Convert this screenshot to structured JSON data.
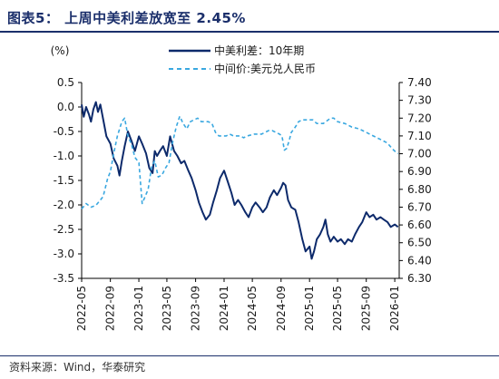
{
  "header": {
    "title": "图表5： 上周中美利差放宽至 2.45%"
  },
  "footer": {
    "source": "资料来源：Wind，华泰研究"
  },
  "colors": {
    "spread": "#0d2a6b",
    "fx": "#3aa8e0",
    "title": "#1b2f6b"
  },
  "chart_data": {
    "type": "line",
    "unit_label": "(%)",
    "left_axis": {
      "ylim": [
        -3.5,
        0.5
      ],
      "ticks": [
        "0.5",
        "0.0",
        "-0.5",
        "-1.0",
        "-1.5",
        "-2.0",
        "-2.5",
        "-3.0",
        "-3.5"
      ]
    },
    "right_axis": {
      "ylim": [
        6.3,
        7.4
      ],
      "ticks": [
        "7.40",
        "7.30",
        "7.20",
        "7.10",
        "7.00",
        "6.90",
        "6.80",
        "6.70",
        "6.60",
        "6.50",
        "6.40",
        "6.30"
      ]
    },
    "x_ticks": [
      "2022-05",
      "2022-09",
      "2023-01",
      "2023-05",
      "2023-09",
      "2024-01",
      "2024-05",
      "2024-09",
      "2025-01",
      "2025-05",
      "2025-09",
      "2026-01"
    ],
    "legend_position": "top-right",
    "series": [
      {
        "name": "中美利差：10年期",
        "axis": "left",
        "style": "solid",
        "points": [
          [
            "2022-05-01",
            0.05
          ],
          [
            "2022-05-10",
            -0.2
          ],
          [
            "2022-05-20",
            0.0
          ],
          [
            "2022-06-01",
            -0.15
          ],
          [
            "2022-06-10",
            -0.3
          ],
          [
            "2022-06-20",
            -0.05
          ],
          [
            "2022-07-01",
            0.1
          ],
          [
            "2022-07-10",
            -0.1
          ],
          [
            "2022-07-20",
            0.05
          ],
          [
            "2022-08-01",
            -0.25
          ],
          [
            "2022-08-15",
            -0.6
          ],
          [
            "2022-09-01",
            -0.75
          ],
          [
            "2022-09-15",
            -1.05
          ],
          [
            "2022-10-01",
            -1.2
          ],
          [
            "2022-10-10",
            -1.4
          ],
          [
            "2022-10-20",
            -1.1
          ],
          [
            "2022-11-01",
            -0.8
          ],
          [
            "2022-11-15",
            -0.5
          ],
          [
            "2022-12-01",
            -0.7
          ],
          [
            "2022-12-15",
            -0.9
          ],
          [
            "2023-01-01",
            -0.6
          ],
          [
            "2023-01-15",
            -0.75
          ],
          [
            "2023-02-01",
            -0.95
          ],
          [
            "2023-02-15",
            -1.25
          ],
          [
            "2023-03-01",
            -1.35
          ],
          [
            "2023-03-10",
            -0.9
          ],
          [
            "2023-03-20",
            -1.0
          ],
          [
            "2023-04-01",
            -0.9
          ],
          [
            "2023-04-15",
            -0.8
          ],
          [
            "2023-05-01",
            -1.0
          ],
          [
            "2023-05-15",
            -0.6
          ],
          [
            "2023-06-01",
            -0.9
          ],
          [
            "2023-06-15",
            -1.0
          ],
          [
            "2023-07-01",
            -1.15
          ],
          [
            "2023-07-15",
            -1.1
          ],
          [
            "2023-08-01",
            -1.3
          ],
          [
            "2023-08-15",
            -1.45
          ],
          [
            "2023-09-01",
            -1.7
          ],
          [
            "2023-09-15",
            -1.95
          ],
          [
            "2023-10-01",
            -2.15
          ],
          [
            "2023-10-15",
            -2.3
          ],
          [
            "2023-11-01",
            -2.2
          ],
          [
            "2023-11-15",
            -1.95
          ],
          [
            "2023-12-01",
            -1.7
          ],
          [
            "2023-12-15",
            -1.45
          ],
          [
            "2024-01-01",
            -1.3
          ],
          [
            "2024-01-15",
            -1.5
          ],
          [
            "2024-02-01",
            -1.75
          ],
          [
            "2024-02-15",
            -2.0
          ],
          [
            "2024-03-01",
            -1.9
          ],
          [
            "2024-03-15",
            -2.0
          ],
          [
            "2024-04-01",
            -2.15
          ],
          [
            "2024-04-15",
            -2.25
          ],
          [
            "2024-05-01",
            -2.05
          ],
          [
            "2024-05-15",
            -1.95
          ],
          [
            "2024-06-01",
            -2.05
          ],
          [
            "2024-06-15",
            -2.15
          ],
          [
            "2024-07-01",
            -2.05
          ],
          [
            "2024-07-15",
            -1.85
          ],
          [
            "2024-08-01",
            -1.7
          ],
          [
            "2024-08-15",
            -1.8
          ],
          [
            "2024-09-01",
            -1.65
          ],
          [
            "2024-09-10",
            -1.55
          ],
          [
            "2024-09-20",
            -1.6
          ],
          [
            "2024-10-01",
            -1.9
          ],
          [
            "2024-10-15",
            -2.05
          ],
          [
            "2024-11-01",
            -2.1
          ],
          [
            "2024-11-15",
            -2.35
          ],
          [
            "2024-12-01",
            -2.7
          ],
          [
            "2024-12-15",
            -2.95
          ],
          [
            "2025-01-01",
            -2.85
          ],
          [
            "2025-01-10",
            -3.1
          ],
          [
            "2025-01-20",
            -2.95
          ],
          [
            "2025-02-01",
            -2.7
          ],
          [
            "2025-02-15",
            -2.6
          ],
          [
            "2025-03-01",
            -2.45
          ],
          [
            "2025-03-10",
            -2.3
          ],
          [
            "2025-03-20",
            -2.6
          ],
          [
            "2025-04-01",
            -2.75
          ],
          [
            "2025-04-15",
            -2.65
          ],
          [
            "2025-05-01",
            -2.75
          ],
          [
            "2025-05-15",
            -2.7
          ],
          [
            "2025-06-01",
            -2.8
          ],
          [
            "2025-06-15",
            -2.7
          ],
          [
            "2025-07-01",
            -2.75
          ],
          [
            "2025-07-15",
            -2.6
          ],
          [
            "2025-08-01",
            -2.45
          ],
          [
            "2025-08-15",
            -2.35
          ],
          [
            "2025-09-01",
            -2.15
          ],
          [
            "2025-09-15",
            -2.25
          ],
          [
            "2025-10-01",
            -2.2
          ],
          [
            "2025-10-15",
            -2.3
          ],
          [
            "2025-11-01",
            -2.25
          ],
          [
            "2025-11-15",
            -2.3
          ],
          [
            "2025-12-01",
            -2.35
          ],
          [
            "2025-12-15",
            -2.45
          ],
          [
            "2026-01-01",
            -2.4
          ],
          [
            "2026-01-15",
            -2.45
          ]
        ]
      },
      {
        "name": "中间价:美元兑人民币",
        "axis": "right",
        "style": "dashed",
        "points": [
          [
            "2022-05-01",
            6.69
          ],
          [
            "2022-05-20",
            6.72
          ],
          [
            "2022-06-10",
            6.7
          ],
          [
            "2022-07-01",
            6.71
          ],
          [
            "2022-07-20",
            6.74
          ],
          [
            "2022-08-01",
            6.76
          ],
          [
            "2022-08-20",
            6.86
          ],
          [
            "2022-09-01",
            6.9
          ],
          [
            "2022-09-15",
            7.0
          ],
          [
            "2022-10-01",
            7.1
          ],
          [
            "2022-10-20",
            7.18
          ],
          [
            "2022-11-01",
            7.2
          ],
          [
            "2022-11-15",
            7.1
          ],
          [
            "2022-12-01",
            7.05
          ],
          [
            "2022-12-15",
            6.98
          ],
          [
            "2023-01-01",
            6.95
          ],
          [
            "2023-01-15",
            6.72
          ],
          [
            "2023-01-25",
            6.75
          ],
          [
            "2023-02-10",
            6.8
          ],
          [
            "2023-02-25",
            6.93
          ],
          [
            "2023-03-10",
            6.96
          ],
          [
            "2023-03-25",
            6.87
          ],
          [
            "2023-04-10",
            6.88
          ],
          [
            "2023-04-25",
            6.92
          ],
          [
            "2023-05-10",
            6.95
          ],
          [
            "2023-05-25",
            7.06
          ],
          [
            "2023-06-10",
            7.15
          ],
          [
            "2023-06-25",
            7.21
          ],
          [
            "2023-07-10",
            7.17
          ],
          [
            "2023-07-25",
            7.14
          ],
          [
            "2023-08-10",
            7.18
          ],
          [
            "2023-08-25",
            7.19
          ],
          [
            "2023-09-10",
            7.2
          ],
          [
            "2023-09-25",
            7.18
          ],
          [
            "2023-10-10",
            7.18
          ],
          [
            "2023-10-25",
            7.18
          ],
          [
            "2023-11-10",
            7.17
          ],
          [
            "2023-11-25",
            7.12
          ],
          [
            "2023-12-10",
            7.1
          ],
          [
            "2023-12-25",
            7.1
          ],
          [
            "2024-01-10",
            7.1
          ],
          [
            "2024-01-25",
            7.11
          ],
          [
            "2024-02-10",
            7.1
          ],
          [
            "2024-02-25",
            7.1
          ],
          [
            "2024-03-10",
            7.1
          ],
          [
            "2024-03-25",
            7.09
          ],
          [
            "2024-04-10",
            7.1
          ],
          [
            "2024-05-10",
            7.11
          ],
          [
            "2024-06-10",
            7.11
          ],
          [
            "2024-07-10",
            7.13
          ],
          [
            "2024-07-25",
            7.13
          ],
          [
            "2024-08-10",
            7.12
          ],
          [
            "2024-08-25",
            7.11
          ],
          [
            "2024-09-05",
            7.1
          ],
          [
            "2024-09-15",
            7.02
          ],
          [
            "2024-09-25",
            7.03
          ],
          [
            "2024-10-05",
            7.07
          ],
          [
            "2024-10-15",
            7.12
          ],
          [
            "2024-11-01",
            7.15
          ],
          [
            "2024-11-15",
            7.18
          ],
          [
            "2024-12-01",
            7.19
          ],
          [
            "2024-12-15",
            7.19
          ],
          [
            "2025-01-01",
            7.19
          ],
          [
            "2025-01-15",
            7.19
          ],
          [
            "2025-02-01",
            7.17
          ],
          [
            "2025-03-01",
            7.17
          ],
          [
            "2025-04-01",
            7.2
          ],
          [
            "2025-04-15",
            7.2
          ],
          [
            "2025-05-01",
            7.18
          ],
          [
            "2025-06-01",
            7.17
          ],
          [
            "2025-07-01",
            7.15
          ],
          [
            "2025-08-01",
            7.14
          ],
          [
            "2025-09-01",
            7.12
          ],
          [
            "2025-10-01",
            7.1
          ],
          [
            "2025-11-01",
            7.08
          ],
          [
            "2025-12-01",
            7.06
          ],
          [
            "2025-12-20",
            7.03
          ],
          [
            "2026-01-05",
            7.01
          ],
          [
            "2026-01-15",
            7.0
          ]
        ]
      }
    ]
  }
}
